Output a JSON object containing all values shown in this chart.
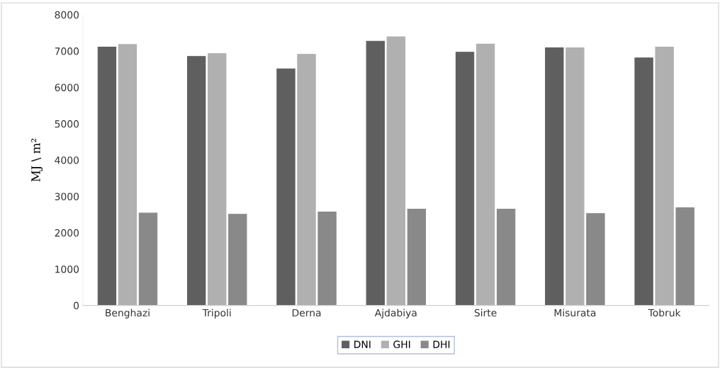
{
  "chart_data": {
    "type": "bar",
    "ylabel": "MJ \\ m²",
    "categories": [
      "Benghazi",
      "Tripoli",
      "Derna",
      "Ajdabiya",
      "Sirte",
      "Misurata",
      "Tobruk"
    ],
    "series": [
      {
        "name": "DNI",
        "color": "#5f5f5f",
        "values": [
          7110,
          6850,
          6510,
          7270,
          6970,
          7090,
          6810
        ]
      },
      {
        "name": "GHI",
        "color": "#b0b0b0",
        "values": [
          7180,
          6930,
          6910,
          7390,
          7190,
          7090,
          7110
        ]
      },
      {
        "name": "DHI",
        "color": "#898989",
        "values": [
          2540,
          2510,
          2570,
          2650,
          2650,
          2530,
          2690
        ]
      }
    ],
    "ylim": [
      0,
      8000
    ],
    "yticks": [
      0,
      1000,
      2000,
      3000,
      4000,
      5000,
      6000,
      7000,
      8000
    ],
    "grid": false,
    "legend": "bottom"
  }
}
